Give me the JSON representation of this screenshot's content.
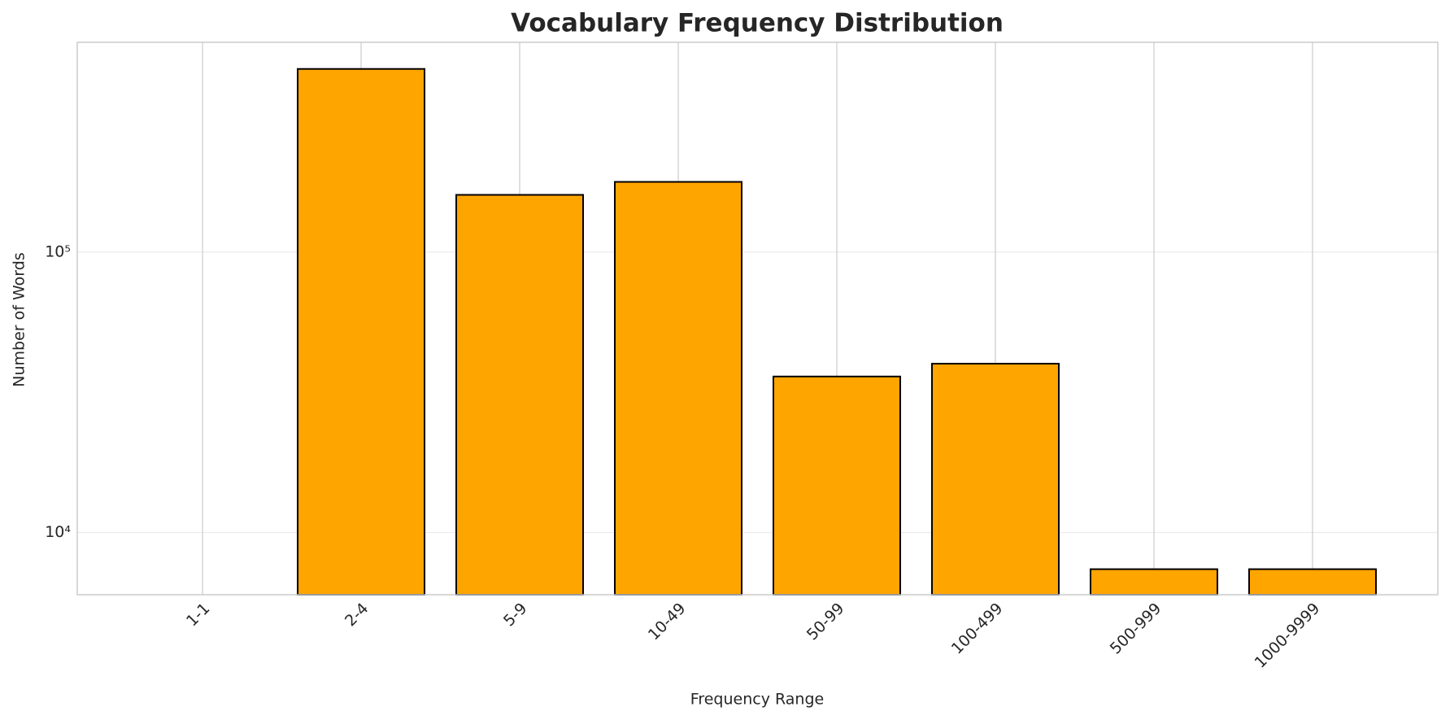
{
  "chart_data": {
    "type": "bar",
    "title": "Vocabulary Frequency Distribution",
    "x_label": "Frequency Range",
    "y_label": "Number of Words",
    "categories": [
      "1-1",
      "2-4",
      "5-9",
      "10-49",
      "50-99",
      "100-499",
      "500-999",
      "1000-9999"
    ],
    "values": [
      null,
      450000,
      160000,
      178000,
      36000,
      40000,
      7400,
      7400
    ],
    "color": "#ffa500",
    "edge_color": "#000000",
    "y_scale": "log",
    "ylim": [
      6000,
      560000
    ],
    "yticks": [
      {
        "value": 10000,
        "label": "10⁴"
      },
      {
        "value": 100000,
        "label": "10⁵"
      }
    ],
    "grid": true
  }
}
